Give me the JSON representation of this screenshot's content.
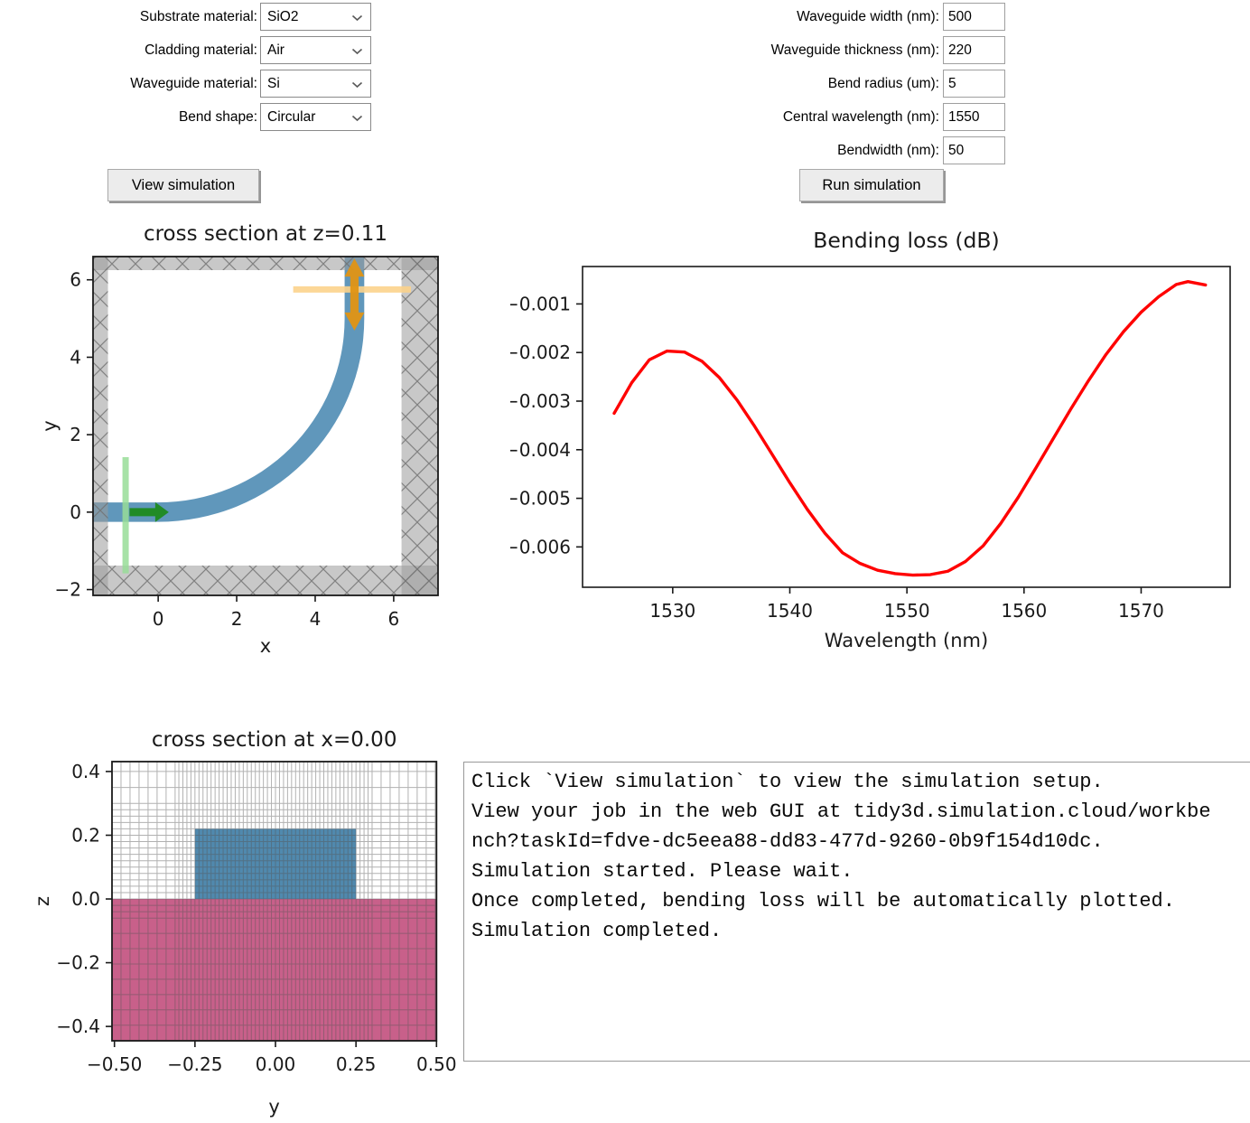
{
  "form_left": {
    "fields": [
      {
        "name": "substrate-material",
        "label": "Substrate material:",
        "value": "SiO2"
      },
      {
        "name": "cladding-material",
        "label": "Cladding material:",
        "value": "Air"
      },
      {
        "name": "waveguide-material",
        "label": "Waveguide material:",
        "value": "Si"
      },
      {
        "name": "bend-shape",
        "label": "Bend shape:",
        "value": "Circular"
      }
    ],
    "button_label": "View simulation"
  },
  "form_right": {
    "fields": [
      {
        "name": "waveguide-width",
        "label": "Waveguide width (nm):",
        "value": "500"
      },
      {
        "name": "waveguide-thickness",
        "label": "Waveguide thickness (nm):",
        "value": "220"
      },
      {
        "name": "bend-radius",
        "label": "Bend radius (um):",
        "value": "5"
      },
      {
        "name": "central-wavelength",
        "label": "Central wavelength (nm):",
        "value": "1550"
      },
      {
        "name": "bendwidth",
        "label": "Bendwidth (nm):",
        "value": "50"
      }
    ],
    "button_label": "Run simulation"
  },
  "console": {
    "lines": [
      "Click `View simulation` to view the simulation setup.",
      "View your job in the web GUI at tidy3d.simulation.cloud/workbe",
      "nch?taskId=fdve-dc5eea88-dd83-477d-9260-0b9f154d10dc.",
      "Simulation started. Please wait.",
      "Once completed, bending loss will be automatically plotted.",
      "Simulation completed."
    ]
  },
  "chart_data": [
    {
      "id": "xy_cross_section",
      "type": "diagram",
      "title": "cross section at z=0.11",
      "xlabel": "x",
      "ylabel": "y",
      "xlim": [
        -1.66,
        7.13
      ],
      "ylim": [
        -2.15,
        6.6
      ],
      "xticks": [
        0,
        2,
        4,
        6
      ],
      "xticklabels": [
        "0",
        "2",
        "4",
        "6"
      ],
      "yticks": [
        -2,
        0,
        2,
        4,
        6
      ],
      "yticklabels": [
        "−2",
        "0",
        "2",
        "4",
        "6"
      ],
      "sim_box": {
        "x": [
          -1.28,
          6.2
        ],
        "y": [
          -1.38,
          6.25
        ]
      },
      "pml": {
        "fill": "#9a9a9a",
        "opacity": 0.55,
        "hatch_color": "#6f6f6f"
      },
      "waveguide": {
        "color": "#6097bb",
        "width": 0.5,
        "bend_radius": 5,
        "bend_center": [
          0,
          5
        ],
        "vertical_x": 5
      },
      "source": {
        "line_x": -0.83,
        "line_y": [
          -1.58,
          1.42
        ],
        "line_color": "#98dd98",
        "arrow_y": 0,
        "arrow_x": [
          -0.73,
          0.27
        ],
        "arrow_color": "#1e8a1e"
      },
      "monitor": {
        "line_y": 5.75,
        "line_x": [
          3.44,
          6.44
        ],
        "line_color": "#fcd38c",
        "arrow_x": 5,
        "arrow_y": [
          4.69,
          6.55
        ],
        "arrow_color": "#e09414"
      }
    },
    {
      "id": "bending_loss",
      "type": "line",
      "title": "Bending loss (dB)",
      "xlabel": "Wavelength (nm)",
      "ylabel": "",
      "line_color": "#ff0000",
      "xlim": [
        1522.3,
        1577.6
      ],
      "ylim": [
        -0.00683,
        -0.00023
      ],
      "xticks": [
        1530,
        1540,
        1550,
        1560,
        1570
      ],
      "xticklabels": [
        "1530",
        "1540",
        "1550",
        "1560",
        "1570"
      ],
      "yticks": [
        -0.001,
        -0.002,
        -0.003,
        -0.004,
        -0.005,
        -0.006
      ],
      "yticklabels": [
        "−0.001",
        "−0.002",
        "−0.003",
        "−0.004",
        "−0.005",
        "−0.006"
      ],
      "x": [
        1525,
        1526.5,
        1528,
        1529.5,
        1531,
        1532.5,
        1534,
        1535.5,
        1537,
        1538.5,
        1540,
        1541.5,
        1543,
        1544.5,
        1546,
        1547.5,
        1549,
        1550.5,
        1552,
        1553.5,
        1555,
        1556.5,
        1558,
        1559.5,
        1561,
        1562.5,
        1564,
        1565.5,
        1567,
        1568.5,
        1570,
        1571.5,
        1573,
        1574,
        1575.5
      ],
      "y": [
        -0.00325,
        -0.00262,
        -0.00215,
        -0.00197,
        -0.00199,
        -0.00218,
        -0.00252,
        -0.00298,
        -0.00352,
        -0.0041,
        -0.00468,
        -0.00523,
        -0.00572,
        -0.00612,
        -0.00634,
        -0.00648,
        -0.00655,
        -0.00658,
        -0.00657,
        -0.0065,
        -0.0063,
        -0.00598,
        -0.00552,
        -0.00498,
        -0.00438,
        -0.00377,
        -0.00316,
        -0.00258,
        -0.00204,
        -0.00157,
        -0.00117,
        -0.00085,
        -0.0006,
        -0.00054,
        -0.00061
      ]
    },
    {
      "id": "yz_cross_section",
      "type": "diagram",
      "title": "cross section at x=0.00",
      "xlabel": "y",
      "ylabel": "z",
      "xlim": [
        -0.5076,
        0.5
      ],
      "ylim": [
        -0.445,
        0.431
      ],
      "xticks": [
        -0.5,
        -0.25,
        0.0,
        0.25,
        0.5
      ],
      "xticklabels": [
        "−0.50",
        "−0.25",
        "0.00",
        "0.25",
        "0.50"
      ],
      "yticks": [
        0.4,
        0.2,
        0.0,
        -0.2,
        -0.4
      ],
      "yticklabels": [
        "0.4",
        "0.2",
        "0.0",
        "−0.2",
        "−0.4"
      ],
      "substrate": {
        "y": [
          -0.5076,
          0.5
        ],
        "z": [
          -0.445,
          0.0
        ],
        "color": "#c8608a"
      },
      "waveguide": {
        "y": [
          -0.25,
          0.25
        ],
        "z": [
          0.0,
          0.22
        ],
        "color": "#5089ae"
      },
      "mesh": {
        "color": "#555555",
        "opacity": 0.45,
        "v_fine_range": [
          -0.3,
          0.3
        ],
        "v_fine_step": 0.0125,
        "v_coarse_step": 0.028,
        "h_fine_range": [
          -0.06,
          0.3
        ],
        "h_fine_step": 0.02,
        "h_coarse_step": 0.05
      }
    }
  ]
}
